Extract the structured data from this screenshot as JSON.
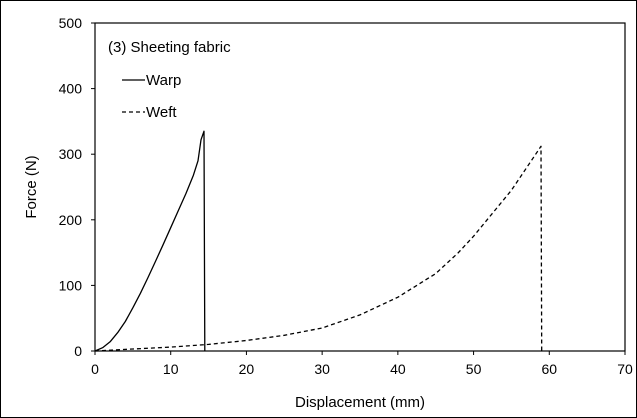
{
  "chart_data": {
    "type": "line",
    "annotation": "(3) Sheeting fabric",
    "xlabel": "Displacement (mm)",
    "ylabel": "Force (N)",
    "xlim": [
      0,
      70
    ],
    "ylim": [
      0,
      500
    ],
    "xticks": [
      0,
      10,
      20,
      30,
      40,
      50,
      60,
      70
    ],
    "yticks": [
      0,
      100,
      200,
      300,
      400,
      500
    ],
    "grid": false,
    "legend": "top-left, inside plot",
    "series": [
      {
        "name": "Warp",
        "style": "solid",
        "color": "#000000",
        "points": [
          [
            0,
            0
          ],
          [
            1,
            5
          ],
          [
            2,
            14
          ],
          [
            3,
            28
          ],
          [
            4,
            45
          ],
          [
            5,
            66
          ],
          [
            6,
            88
          ],
          [
            7,
            112
          ],
          [
            8,
            137
          ],
          [
            9,
            162
          ],
          [
            10,
            188
          ],
          [
            11,
            214
          ],
          [
            12,
            240
          ],
          [
            13,
            268
          ],
          [
            13.6,
            290
          ],
          [
            14,
            322
          ],
          [
            14.4,
            335
          ],
          [
            14.5,
            0
          ]
        ]
      },
      {
        "name": "Weft",
        "style": "dashed",
        "color": "#000000",
        "points": [
          [
            0,
            0
          ],
          [
            5,
            3
          ],
          [
            10,
            6
          ],
          [
            15,
            10
          ],
          [
            20,
            16
          ],
          [
            25,
            24
          ],
          [
            30,
            35
          ],
          [
            35,
            55
          ],
          [
            40,
            82
          ],
          [
            45,
            118
          ],
          [
            48,
            150
          ],
          [
            50,
            175
          ],
          [
            55,
            245
          ],
          [
            58.5,
            305
          ],
          [
            58.9,
            312
          ],
          [
            59,
            0
          ]
        ]
      }
    ]
  }
}
